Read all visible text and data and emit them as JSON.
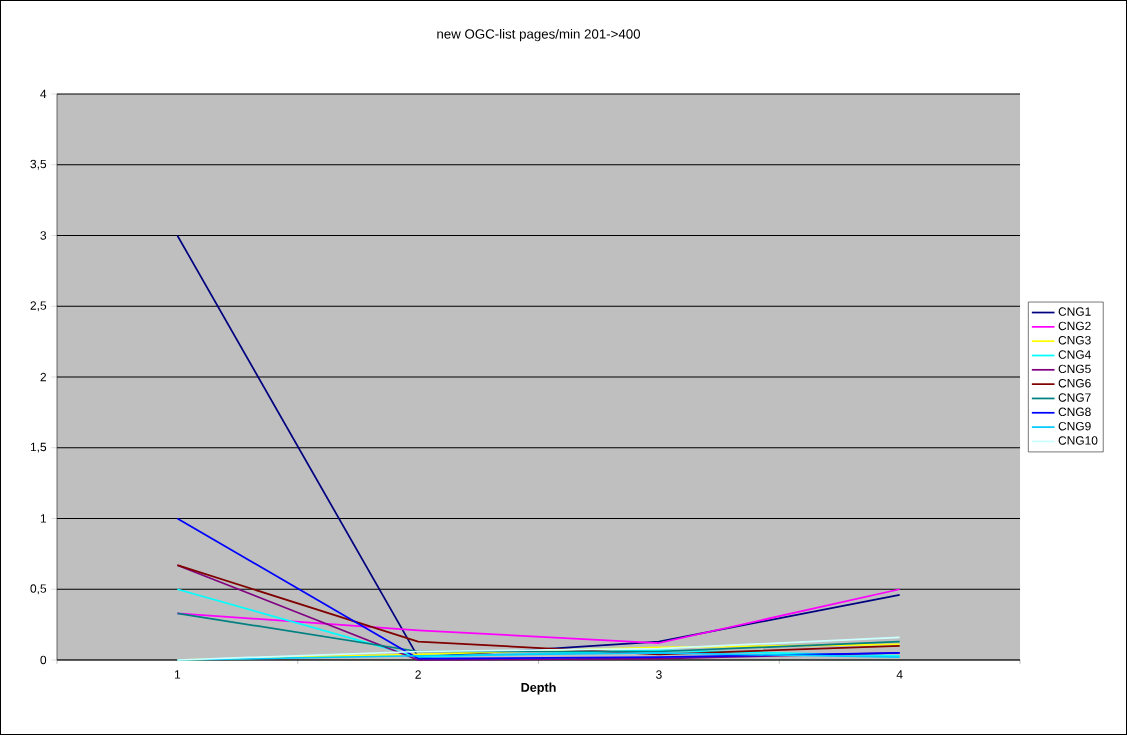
{
  "chart_data": {
    "type": "line",
    "title": "new OGC-list pages/min 201->400",
    "xlabel": "Depth",
    "categories": [
      "1",
      "2",
      "3",
      "4"
    ],
    "series": [
      {
        "name": "CNG1",
        "color": "#000080",
        "values": [
          3,
          0.02,
          0.13,
          0.46
        ]
      },
      {
        "name": "CNG2",
        "color": "#ff00ff",
        "values": [
          0.33,
          0.21,
          0.12,
          0.5
        ]
      },
      {
        "name": "CNG3",
        "color": "#ffff00",
        "values": [
          0,
          0.04,
          0.09,
          0.11
        ]
      },
      {
        "name": "CNG4",
        "color": "#00ffff",
        "values": [
          0.5,
          0.02,
          0.07,
          0.03
        ]
      },
      {
        "name": "CNG5",
        "color": "#800080",
        "values": [
          0.67,
          0,
          0.01,
          0.05
        ]
      },
      {
        "name": "CNG6",
        "color": "#800000",
        "values": [
          0.67,
          0.13,
          0.04,
          0.1
        ]
      },
      {
        "name": "CNG7",
        "color": "#008080",
        "values": [
          0.33,
          0.06,
          0.06,
          0.13
        ]
      },
      {
        "name": "CNG8",
        "color": "#0000ff",
        "values": [
          1,
          0.01,
          0.02,
          0.05
        ]
      },
      {
        "name": "CNG9",
        "color": "#00ccff",
        "values": [
          0,
          0.03,
          0.05,
          0.02
        ]
      },
      {
        "name": "CNG10",
        "color": "#ccffff",
        "values": [
          0,
          0.06,
          0.08,
          0.16
        ]
      }
    ],
    "ylim": [
      0,
      4
    ],
    "yticks": [
      0,
      {
        "value": 0.5,
        "label": "0,5"
      },
      1,
      {
        "value": 1.5,
        "label": "1,5"
      },
      2,
      {
        "value": 2.5,
        "label": "2,5"
      },
      3,
      {
        "value": 3.5,
        "label": "3,5"
      },
      4
    ],
    "grid": "y",
    "legend": "right",
    "marker": "none",
    "line_style": "solid"
  }
}
